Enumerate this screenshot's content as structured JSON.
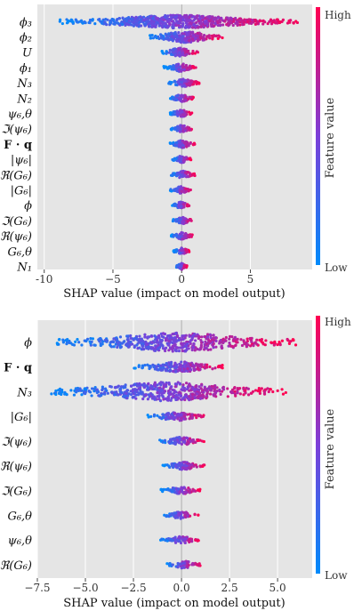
{
  "chart_data": [
    {
      "type": "scatter",
      "subtype": "shap_summary_beeswarm",
      "xlabel": "SHAP value (impact on model output)",
      "xlim": [
        -10.5,
        9.5
      ],
      "xticks": [
        -10,
        -5,
        0,
        5
      ],
      "xtick_labels": [
        "-10",
        "−5",
        "0",
        "5"
      ],
      "colorbar": {
        "label": "Feature value",
        "high": "High",
        "low": "Low",
        "high_color": "#ff0051",
        "low_color": "#008bfb"
      },
      "background": "#e5e5e5",
      "features": [
        {
          "label": "ϕ₃",
          "min": -9.0,
          "max": 8.5
        },
        {
          "label": "ϕ₂",
          "min": -2.5,
          "max": 3.0
        },
        {
          "label": "U",
          "min": -1.5,
          "max": 1.2
        },
        {
          "label": "ϕ₁",
          "min": -1.3,
          "max": 1.1
        },
        {
          "label": "N₃",
          "min": -1.0,
          "max": 1.3
        },
        {
          "label": "N₂",
          "min": -0.9,
          "max": 0.9
        },
        {
          "label": "ψ₆,θ",
          "min": -0.9,
          "max": 0.8
        },
        {
          "label": "ℑ(ψ₆)",
          "min": -0.8,
          "max": 0.8
        },
        {
          "label": "F · q",
          "min": -0.9,
          "max": 1.0
        },
        {
          "label": "|ψ₆|",
          "min": -0.7,
          "max": 0.7
        },
        {
          "label": "ℜ(G₆)",
          "min": -0.8,
          "max": 1.0
        },
        {
          "label": "|G₆|",
          "min": -0.9,
          "max": 0.7
        },
        {
          "label": "ϕ",
          "min": -0.7,
          "max": 0.6
        },
        {
          "label": "ℑ(G₆)",
          "min": -0.7,
          "max": 0.8
        },
        {
          "label": "ℜ(ψ₆)",
          "min": -0.8,
          "max": 0.8
        },
        {
          "label": "G₆,θ",
          "min": -0.6,
          "max": 0.6
        },
        {
          "label": "N₁",
          "min": -0.4,
          "max": 0.4
        }
      ]
    },
    {
      "type": "scatter",
      "subtype": "shap_summary_beeswarm",
      "xlabel": "SHAP value (impact on model output)",
      "xlim": [
        -7.5,
        6.8
      ],
      "xticks": [
        -7.5,
        -5.0,
        -2.5,
        0.0,
        2.5,
        5.0
      ],
      "xtick_labels": [
        "−7.5",
        "−5.0",
        "−2.5",
        "0.0",
        "2.5",
        "5.0"
      ],
      "colorbar": {
        "label": "Feature value",
        "high": "High",
        "low": "Low",
        "high_color": "#ff0051",
        "low_color": "#008bfb"
      },
      "background": "#e5e5e5",
      "features": [
        {
          "label": "ϕ",
          "min": -6.5,
          "max": 6.0
        },
        {
          "label": "F · q",
          "min": -2.5,
          "max": 2.3
        },
        {
          "label": "N₃",
          "min": -7.0,
          "max": 5.5
        },
        {
          "label": "|G₆|",
          "min": -1.8,
          "max": 1.3
        },
        {
          "label": "ℑ(ψ₆)",
          "min": -1.2,
          "max": 1.2
        },
        {
          "label": "ℜ(ψ₆)",
          "min": -1.0,
          "max": 1.2
        },
        {
          "label": "ℑ(G₆)",
          "min": -1.1,
          "max": 1.0
        },
        {
          "label": "G₆,θ",
          "min": -0.9,
          "max": 0.9
        },
        {
          "label": "ψ₆,θ",
          "min": -1.1,
          "max": 1.0
        },
        {
          "label": "ℜ(G₆)",
          "min": -0.8,
          "max": 1.0
        }
      ]
    }
  ]
}
